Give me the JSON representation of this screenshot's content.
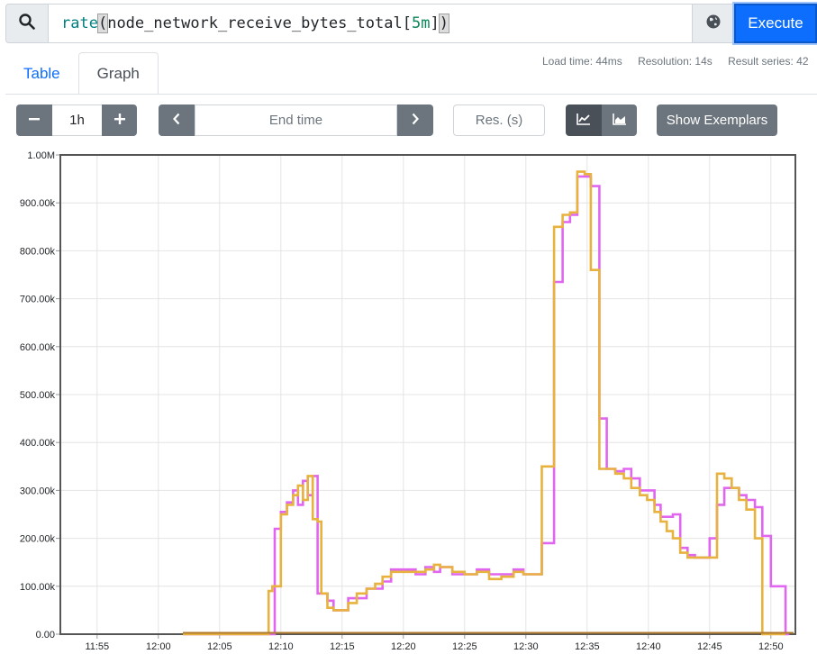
{
  "query": {
    "fn": "rate",
    "open": "(",
    "metric": "node_network_receive_bytes_total[",
    "range_num": "5m",
    "close_bracket": "]",
    "close": ")",
    "execute_label": "Execute"
  },
  "tabs": {
    "table": "Table",
    "graph": "Graph"
  },
  "stats": {
    "load_time": "Load time: 44ms",
    "resolution": "Resolution: 14s",
    "result_series": "Result series: 42"
  },
  "controls": {
    "range_minus": "−",
    "range_value": "1h",
    "range_plus": "+",
    "end_prev": "‹",
    "end_time_placeholder": "End time",
    "end_next": "›",
    "res_placeholder": "Res. (s)",
    "show_exemplars": "Show Exemplars"
  },
  "icons": {
    "search": "search-icon",
    "metrics_explorer": "globe-icon",
    "stacked_off": "line-chart-icon",
    "stacked_on": "area-chart-icon"
  },
  "colors": {
    "accent": "#0d6efd",
    "series_magenta": "#e066f0",
    "series_orange": "#e8b23e"
  },
  "chart_data": {
    "type": "line",
    "ylim": [
      0,
      1000000
    ],
    "x_domain": [
      "11:52",
      "12:52"
    ],
    "y_ticks": [
      "0.00",
      "100.00k",
      "200.00k",
      "300.00k",
      "400.00k",
      "500.00k",
      "600.00k",
      "700.00k",
      "800.00k",
      "900.00k",
      "1.00M"
    ],
    "x_ticks": [
      "11:55",
      "12:00",
      "12:05",
      "12:10",
      "12:15",
      "12:20",
      "12:25",
      "12:30",
      "12:35",
      "12:40",
      "12:45",
      "12:50"
    ],
    "grid": true,
    "legend": "none",
    "series": [
      {
        "color": "#e066f0",
        "x": [
          "12:02",
          "12:09.3",
          "12:09.5",
          "12:10",
          "12:10.5",
          "12:11",
          "12:11.4",
          "12:11.8",
          "12:12.2",
          "12:12.6",
          "12:13",
          "12:13.3",
          "12:13.8",
          "12:14.3",
          "12:15",
          "12:15.5",
          "12:16.2",
          "12:17",
          "12:17.7",
          "12:18.3",
          "12:19",
          "12:20",
          "12:21",
          "12:21.8",
          "12:22.5",
          "12:23",
          "12:24",
          "12:25",
          "12:26",
          "12:27",
          "12:28",
          "12:29",
          "12:29.8",
          "12:30.8",
          "12:31.3",
          "12:31.8",
          "12:32.3",
          "12:33",
          "12:33.6",
          "12:34.2",
          "12:34.8",
          "12:35.3",
          "12:36",
          "12:36.6",
          "12:37.3",
          "12:38",
          "12:38.6",
          "12:39.3",
          "12:39.9",
          "12:40.5",
          "12:41",
          "12:41.5",
          "12:42",
          "12:42.6",
          "12:43.2",
          "12:43.8",
          "12:44.4",
          "12:45",
          "12:45.6",
          "12:46.2",
          "12:46.8",
          "12:47.4",
          "12:48",
          "12:48.7",
          "12:49.3",
          "12:50",
          "12:50.6",
          "12:51.2",
          "12:51.5"
        ],
        "values": [
          0,
          0,
          220000,
          255000,
          275000,
          300000,
          270000,
          320000,
          290000,
          330000,
          85000,
          85000,
          70000,
          50000,
          50000,
          75000,
          75000,
          95000,
          95000,
          110000,
          135000,
          135000,
          125000,
          140000,
          130000,
          140000,
          125000,
          125000,
          135000,
          125000,
          125000,
          135000,
          125000,
          125000,
          190000,
          190000,
          735000,
          860000,
          875000,
          955000,
          955000,
          935000,
          450000,
          345000,
          340000,
          345000,
          325000,
          300000,
          300000,
          270000,
          245000,
          245000,
          250000,
          180000,
          165000,
          160000,
          160000,
          200000,
          270000,
          305000,
          305000,
          290000,
          280000,
          265000,
          205000,
          100000,
          100000,
          0,
          0
        ]
      },
      {
        "color": "#e8b23e",
        "x": [
          "12:02",
          "12:09",
          "12:09.3",
          "12:10",
          "12:10.5",
          "12:11",
          "12:11.4",
          "12:11.8",
          "12:12.2",
          "12:12.6",
          "12:13",
          "12:13.3",
          "12:13.8",
          "12:14.3",
          "12:15",
          "12:15.5",
          "12:16.2",
          "12:17",
          "12:17.7",
          "12:18.3",
          "12:19",
          "12:20",
          "12:21",
          "12:21.8",
          "12:22.5",
          "12:23",
          "12:24",
          "12:25",
          "12:26",
          "12:27",
          "12:28",
          "12:29",
          "12:29.8",
          "12:30.8",
          "12:31.3",
          "12:31.8",
          "12:32.3",
          "12:33",
          "12:33.6",
          "12:34.2",
          "12:34.8",
          "12:35.3",
          "12:36",
          "12:36.6",
          "12:37.3",
          "12:38",
          "12:38.6",
          "12:39.3",
          "12:39.9",
          "12:40.5",
          "12:41",
          "12:41.5",
          "12:42",
          "12:42.6",
          "12:43.2",
          "12:43.8",
          "12:44.4",
          "12:45",
          "12:45.6",
          "12:46.2",
          "12:46.8",
          "12:47.4",
          "12:48",
          "12:48.7",
          "12:49.3",
          "12:50",
          "12:50.6",
          "12:51.2"
        ],
        "values": [
          0,
          90000,
          100000,
          250000,
          270000,
          290000,
          310000,
          280000,
          330000,
          240000,
          235000,
          85000,
          55000,
          50000,
          50000,
          65000,
          85000,
          95000,
          105000,
          120000,
          130000,
          130000,
          130000,
          135000,
          145000,
          140000,
          130000,
          125000,
          130000,
          115000,
          120000,
          130000,
          125000,
          125000,
          350000,
          350000,
          850000,
          875000,
          880000,
          965000,
          960000,
          760000,
          345000,
          345000,
          335000,
          325000,
          305000,
          290000,
          280000,
          255000,
          235000,
          215000,
          200000,
          170000,
          160000,
          160000,
          160000,
          160000,
          335000,
          325000,
          305000,
          280000,
          260000,
          200000,
          0,
          0,
          0,
          0
        ]
      }
    ]
  }
}
